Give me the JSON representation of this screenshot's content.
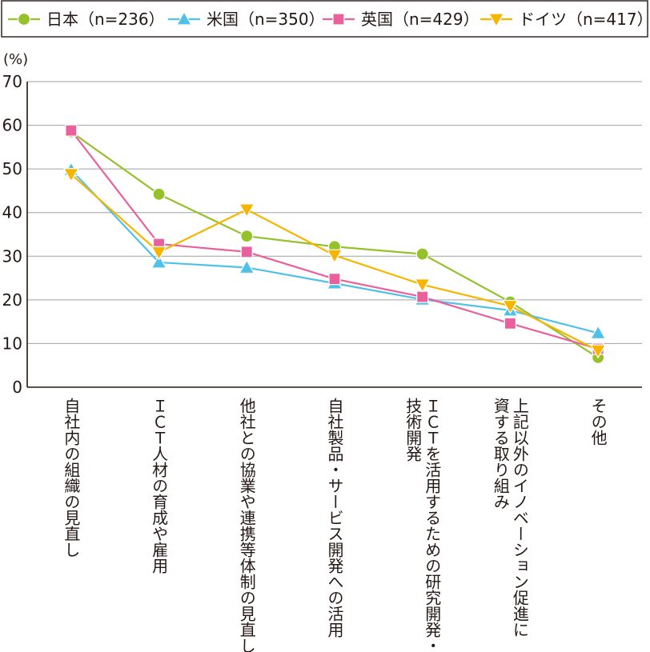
{
  "chart_data": {
    "type": "line",
    "unit": "(%)",
    "ylim": [
      0,
      70
    ],
    "yticks": [
      0,
      10,
      20,
      30,
      40,
      50,
      60,
      70
    ],
    "grid": true,
    "legend_placement": "top",
    "categories": [
      [
        "自社内の組織の見直し"
      ],
      [
        "ＩＣＴ人材の育成や雇用"
      ],
      [
        "他社との協業や連携等体制の見直し"
      ],
      [
        "自社製品・サービス開発への活用"
      ],
      [
        "ＩＣＴを活用するための研究開発・",
        "技術開発"
      ],
      [
        "上記以外のイノベーション促進に",
        "資する取り組み"
      ],
      [
        "その他"
      ]
    ],
    "series": [
      {
        "name": "日本（n=236）",
        "color": "#95c12b",
        "marker": "circle",
        "values": [
          58.5,
          44.2,
          34.6,
          32.2,
          30.5,
          19.5,
          6.8
        ]
      },
      {
        "name": "米国（n=350）",
        "color": "#4fc1e9",
        "marker": "triangle-up",
        "values": [
          49.8,
          28.6,
          27.4,
          23.8,
          20.1,
          17.6,
          12.4
        ]
      },
      {
        "name": "英国（n=429）",
        "color": "#e8609c",
        "marker": "square",
        "values": [
          58.8,
          32.8,
          31.0,
          24.8,
          20.7,
          14.6,
          8.8
        ]
      },
      {
        "name": "ドイツ（n=417）",
        "color": "#f7b500",
        "marker": "triangle-down",
        "values": [
          48.8,
          30.9,
          40.7,
          30.2,
          23.5,
          18.6,
          8.4
        ]
      }
    ]
  }
}
